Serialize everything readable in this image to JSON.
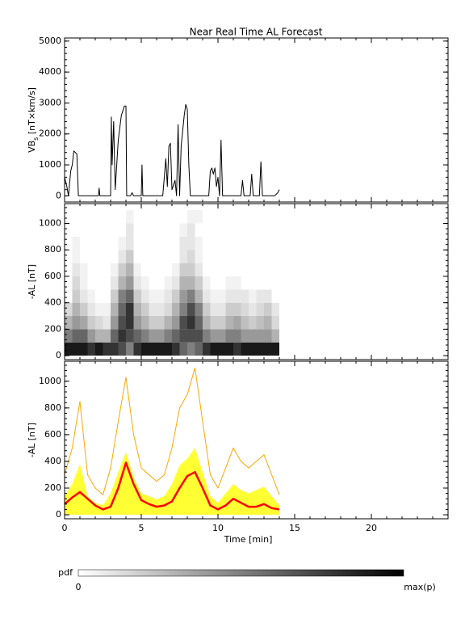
{
  "chart_data": [
    {
      "type": "line",
      "title": "Near Real Time AL Forecast",
      "ylabel_parts": [
        "VB",
        "s",
        " [nT×km/s]"
      ],
      "xlim": [
        0,
        25
      ],
      "xticks": [
        0,
        5,
        10,
        15,
        20
      ],
      "ylim": [
        -200,
        5100
      ],
      "yticks": [
        0,
        1000,
        2000,
        3000,
        4000,
        5000
      ],
      "series": [
        {
          "color": "#000000",
          "x": [
            0,
            0.15,
            0.25,
            0.4,
            0.5,
            0.6,
            0.8,
            0.9,
            2.2,
            2.25,
            2.3,
            3.0,
            3.05,
            3.1,
            3.2,
            3.3,
            3.5,
            3.7,
            3.9,
            4.0,
            4.05,
            4.3,
            4.4,
            4.5,
            5.0,
            5.05,
            5.1,
            6.4,
            6.5,
            6.6,
            6.7,
            6.8,
            6.9,
            7.0,
            7.2,
            7.3,
            7.4,
            7.5,
            7.6,
            7.8,
            7.9,
            8.0,
            8.1,
            8.2,
            9.4,
            9.5,
            9.6,
            9.7,
            9.8,
            9.9,
            10.0,
            10.1,
            10.2,
            10.3,
            11.5,
            11.6,
            11.7,
            12.1,
            12.2,
            12.3,
            12.7,
            12.8,
            12.9,
            13.7,
            13.9,
            14.0
          ],
          "values": [
            600,
            300,
            0,
            800,
            1000,
            1450,
            1350,
            0,
            0,
            250,
            0,
            0,
            2550,
            1000,
            2400,
            200,
            1800,
            2600,
            2900,
            2900,
            0,
            0,
            100,
            0,
            0,
            1000,
            0,
            0,
            600,
            1200,
            300,
            1600,
            1700,
            200,
            500,
            0,
            2300,
            0,
            1600,
            2600,
            2950,
            2800,
            1000,
            0,
            0,
            800,
            900,
            700,
            900,
            300,
            600,
            0,
            1800,
            0,
            0,
            500,
            0,
            0,
            700,
            0,
            0,
            1100,
            0,
            0,
            100,
            200
          ]
        }
      ]
    },
    {
      "type": "heatmap",
      "ylabel": "-AL [nT]",
      "xlim": [
        0,
        25
      ],
      "xticks": [
        0,
        5,
        10,
        15,
        20
      ],
      "ylim": [
        -30,
        1150
      ],
      "yticks": [
        0,
        200,
        400,
        600,
        800,
        1000
      ],
      "x_edges": [
        0,
        0.5,
        1,
        1.5,
        2,
        2.5,
        3,
        3.5,
        4,
        4.5,
        5,
        5.5,
        6,
        6.5,
        7,
        7.5,
        8,
        8.5,
        9,
        9.5,
        10,
        10.5,
        11,
        11.5,
        12,
        12.5,
        13,
        13.5,
        14
      ],
      "y_edges": [
        0,
        100,
        200,
        300,
        400,
        500,
        600,
        700,
        800,
        900,
        1000,
        1100
      ],
      "z": [
        [
          0.9,
          0.5,
          0.3,
          0.15,
          0,
          0,
          0,
          0,
          0,
          0,
          0
        ],
        [
          0.9,
          0.6,
          0.4,
          0.3,
          0.2,
          0.15,
          0.1,
          0.05,
          0.05,
          0,
          0
        ],
        [
          0.9,
          0.6,
          0.35,
          0.2,
          0.1,
          0.05,
          0.05,
          0,
          0,
          0,
          0
        ],
        [
          0.8,
          0.4,
          0.2,
          0.1,
          0.05,
          0,
          0,
          0,
          0,
          0,
          0
        ],
        [
          0.9,
          0.3,
          0.15,
          0.05,
          0,
          0,
          0,
          0,
          0,
          0,
          0
        ],
        [
          0.8,
          0.3,
          0.1,
          0.05,
          0,
          0,
          0,
          0,
          0,
          0,
          0
        ],
        [
          0.8,
          0.6,
          0.4,
          0.3,
          0.2,
          0.1,
          0.05,
          0,
          0,
          0,
          0
        ],
        [
          0.7,
          0.8,
          0.7,
          0.6,
          0.5,
          0.3,
          0.2,
          0.1,
          0.05,
          0,
          0
        ],
        [
          0.5,
          0.7,
          0.8,
          0.8,
          0.6,
          0.4,
          0.3,
          0.2,
          0.1,
          0.1,
          0.05
        ],
        [
          0.8,
          0.6,
          0.4,
          0.3,
          0.2,
          0.1,
          0.05,
          0,
          0,
          0,
          0
        ],
        [
          0.9,
          0.5,
          0.3,
          0.2,
          0.1,
          0.05,
          0,
          0,
          0,
          0,
          0
        ],
        [
          0.9,
          0.4,
          0.2,
          0.1,
          0.05,
          0,
          0,
          0,
          0,
          0,
          0
        ],
        [
          0.9,
          0.4,
          0.2,
          0.1,
          0.05,
          0,
          0,
          0,
          0,
          0,
          0
        ],
        [
          0.9,
          0.5,
          0.3,
          0.15,
          0.1,
          0.05,
          0,
          0,
          0,
          0,
          0
        ],
        [
          0.8,
          0.6,
          0.4,
          0.3,
          0.2,
          0.1,
          0.05,
          0,
          0,
          0,
          0
        ],
        [
          0.6,
          0.7,
          0.7,
          0.5,
          0.4,
          0.3,
          0.2,
          0.1,
          0.1,
          0.05,
          0
        ],
        [
          0.5,
          0.7,
          0.8,
          0.7,
          0.5,
          0.3,
          0.2,
          0.15,
          0.1,
          0.1,
          0.05
        ],
        [
          0.6,
          0.7,
          0.6,
          0.5,
          0.3,
          0.2,
          0.1,
          0.05,
          0.05,
          0,
          0.05
        ],
        [
          0.8,
          0.5,
          0.3,
          0.2,
          0.1,
          0.05,
          0,
          0,
          0,
          0,
          0
        ],
        [
          0.9,
          0.4,
          0.2,
          0.1,
          0.05,
          0,
          0,
          0,
          0,
          0,
          0
        ],
        [
          0.9,
          0.4,
          0.2,
          0.1,
          0.05,
          0,
          0,
          0,
          0,
          0,
          0
        ],
        [
          0.9,
          0.5,
          0.3,
          0.2,
          0.1,
          0.05,
          0,
          0,
          0,
          0,
          0
        ],
        [
          0.8,
          0.5,
          0.35,
          0.2,
          0.1,
          0.05,
          0,
          0,
          0,
          0,
          0
        ],
        [
          0.9,
          0.4,
          0.25,
          0.15,
          0.1,
          0,
          0,
          0,
          0,
          0,
          0
        ],
        [
          0.9,
          0.4,
          0.2,
          0.1,
          0.05,
          0,
          0,
          0,
          0,
          0,
          0
        ],
        [
          0.9,
          0.4,
          0.25,
          0.15,
          0.1,
          0,
          0,
          0,
          0,
          0,
          0
        ],
        [
          0.9,
          0.4,
          0.3,
          0.2,
          0.1,
          0,
          0,
          0,
          0,
          0,
          0
        ],
        [
          0.9,
          0.3,
          0.15,
          0.1,
          0,
          0,
          0,
          0,
          0,
          0,
          0
        ]
      ]
    },
    {
      "type": "line",
      "ylabel": "-AL [nT]",
      "xlabel": "Time [min]",
      "show_xtick_labels": true,
      "xlim": [
        0,
        25
      ],
      "xticks": [
        0,
        5,
        10,
        15,
        20
      ],
      "ylim": [
        -30,
        1150
      ],
      "yticks": [
        0,
        200,
        400,
        600,
        800,
        1000
      ],
      "series": [
        {
          "color": "#ffff33",
          "fill": "area",
          "x": [
            0,
            0.5,
            1,
            1.5,
            2,
            2.5,
            3,
            3.5,
            4,
            4.5,
            5,
            5.5,
            6,
            6.5,
            7,
            7.5,
            8,
            8.5,
            9,
            9.5,
            10,
            10.5,
            11,
            11.5,
            12,
            12.5,
            13,
            13.5,
            14
          ],
          "values": [
            140,
            230,
            380,
            140,
            90,
            70,
            160,
            320,
            470,
            280,
            160,
            140,
            115,
            140,
            230,
            370,
            420,
            500,
            320,
            140,
            90,
            160,
            230,
            185,
            160,
            185,
            210,
            140,
            70
          ]
        },
        {
          "color": "#ffa500",
          "x": [
            0,
            0.5,
            1,
            1.5,
            2,
            2.5,
            3,
            3.5,
            4,
            4.5,
            5,
            5.5,
            6,
            6.5,
            7,
            7.5,
            8,
            8.5,
            9,
            9.5,
            10,
            10.5,
            11,
            11.5,
            12,
            12.5,
            13,
            13.5,
            14
          ],
          "values": [
            300,
            500,
            850,
            300,
            200,
            150,
            350,
            700,
            1030,
            600,
            350,
            300,
            250,
            300,
            500,
            800,
            900,
            1100,
            700,
            300,
            200,
            350,
            500,
            400,
            350,
            400,
            450,
            300,
            150
          ]
        },
        {
          "color": "#ff0000",
          "width": 2.5,
          "x": [
            0,
            0.5,
            1,
            1.5,
            2,
            2.5,
            3,
            3.5,
            4,
            4.5,
            5,
            5.5,
            6,
            6.5,
            7,
            7.5,
            8,
            8.5,
            9,
            9.5,
            10,
            10.5,
            11,
            11.5,
            12,
            12.5,
            13,
            13.5,
            14
          ],
          "values": [
            80,
            130,
            170,
            120,
            70,
            40,
            60,
            200,
            390,
            230,
            110,
            80,
            60,
            70,
            100,
            200,
            290,
            320,
            200,
            70,
            40,
            70,
            120,
            90,
            60,
            60,
            80,
            50,
            40
          ]
        }
      ]
    }
  ],
  "colorbar": {
    "label": "pdf",
    "min_label": "0",
    "max_label": "max(p)"
  }
}
